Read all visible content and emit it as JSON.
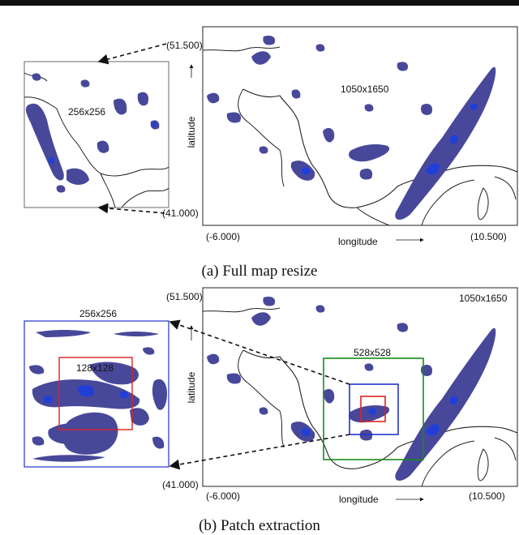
{
  "figure": {
    "colors": {
      "precip": "#48489a",
      "precip_core": "#1f3fd8",
      "coast": "#222222",
      "patch_528": "#1a8a1a",
      "patch_256": "#2233cc",
      "patch_128": "#dd2222"
    },
    "panel_a": {
      "caption": "(a) Full map resize",
      "small_map_size": "256x256",
      "big_map_size": "1050x1650",
      "lat_top": "(51.500)",
      "lat_bottom": "(41.000)",
      "lon_left": "(-6.000)",
      "lon_right": "(10.500)",
      "ylabel": "latitude",
      "xlabel": "longitude"
    },
    "panel_b": {
      "caption": "(b) Patch extraction",
      "inset_size": "256x256",
      "inner_size": "128x128",
      "big_map_size": "1050x1650",
      "patch_label": "528x528",
      "lat_top": "(51.500)",
      "lat_bottom": "(41.000)",
      "lon_left": "(-6.000)",
      "lon_right": "(10.500)",
      "ylabel": "latitude",
      "xlabel": "longitude"
    }
  }
}
